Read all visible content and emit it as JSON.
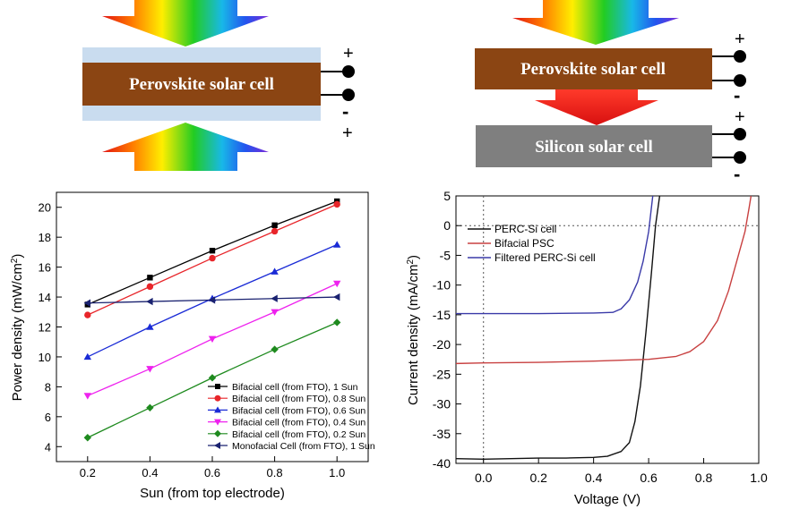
{
  "diagrams": {
    "bifacial": {
      "cell_label": "Perovskite solar cell",
      "plus": "+",
      "minus": "-",
      "plus_bottom": "+"
    },
    "tandem": {
      "top_label": "Perovskite solar cell",
      "bottom_label": "Silicon solar cell",
      "plus1": "+",
      "minus1": "-",
      "plus2": "+",
      "minus2": "-"
    }
  },
  "chart_data": [
    {
      "type": "line",
      "xlabel": "Sun (from top electrode)",
      "ylabel": "Power density (mW/cm²)",
      "xlim": [
        0.1,
        1.1
      ],
      "ylim": [
        3,
        21
      ],
      "xticks": [
        "0.2",
        "0.4",
        "0.6",
        "0.8",
        "1.0"
      ],
      "yticks": [
        "4",
        "6",
        "8",
        "10",
        "12",
        "14",
        "16",
        "18",
        "20"
      ],
      "x": [
        0.2,
        0.4,
        0.6,
        0.8,
        1.0
      ],
      "legend_position": "bottom-right",
      "series": [
        {
          "name": "Bifacial cell (from FTO), 1 Sun",
          "color": "#000000",
          "marker": "square",
          "values": [
            13.5,
            15.3,
            17.1,
            18.8,
            20.4
          ]
        },
        {
          "name": "Bifacial cell (from FTO), 0.8 Sun",
          "color": "#e8252a",
          "marker": "circle",
          "values": [
            12.8,
            14.7,
            16.6,
            18.4,
            20.2
          ]
        },
        {
          "name": "Bifacial cell (from FTO), 0.6 Sun",
          "color": "#1a2bd6",
          "marker": "triangle-up",
          "values": [
            10.0,
            12.0,
            13.9,
            15.7,
            17.5
          ]
        },
        {
          "name": "Bifacial cell (from FTO), 0.4 Sun",
          "color": "#ee22ee",
          "marker": "triangle-down",
          "values": [
            7.4,
            9.2,
            11.2,
            13.0,
            14.9
          ]
        },
        {
          "name": "Bifacial cell (from FTO), 0.2 Sun",
          "color": "#1e8a1e",
          "marker": "diamond",
          "values": [
            4.6,
            6.6,
            8.6,
            10.5,
            12.3
          ]
        },
        {
          "name": "Monofacial Cell (from FTO), 1 Sun",
          "color": "#1a2270",
          "marker": "triangle-left",
          "values": [
            13.6,
            13.7,
            13.8,
            13.9,
            14.0
          ]
        }
      ]
    },
    {
      "type": "line",
      "xlabel": "Voltage (V)",
      "ylabel": "Current density (mA/cm²)",
      "xlim": [
        -0.1,
        1.0
      ],
      "ylim": [
        -40,
        5
      ],
      "xticks": [
        "0.0",
        "0.2",
        "0.4",
        "0.6",
        "0.8",
        "1.0"
      ],
      "yticks": [
        "5",
        "0",
        "-5",
        "-10",
        "-15",
        "-20",
        "-25",
        "-30",
        "-35",
        "-40"
      ],
      "legend_position": "top-left",
      "series": [
        {
          "name": "PERC-Si cell",
          "color": "#111111",
          "points": [
            [
              -0.1,
              -39.2
            ],
            [
              0.0,
              -39.3
            ],
            [
              0.1,
              -39.2
            ],
            [
              0.2,
              -39.1
            ],
            [
              0.3,
              -39.1
            ],
            [
              0.4,
              -39.0
            ],
            [
              0.45,
              -38.8
            ],
            [
              0.5,
              -38.0
            ],
            [
              0.53,
              -36.5
            ],
            [
              0.55,
              -33.0
            ],
            [
              0.57,
              -27.0
            ],
            [
              0.59,
              -18.0
            ],
            [
              0.61,
              -8.0
            ],
            [
              0.625,
              0.0
            ],
            [
              0.64,
              5.0
            ]
          ]
        },
        {
          "name": "Bifacial PSC",
          "color": "#c84040",
          "points": [
            [
              -0.1,
              -23.2
            ],
            [
              0.0,
              -23.1
            ],
            [
              0.2,
              -23.0
            ],
            [
              0.4,
              -22.8
            ],
            [
              0.6,
              -22.5
            ],
            [
              0.7,
              -22.0
            ],
            [
              0.75,
              -21.2
            ],
            [
              0.8,
              -19.5
            ],
            [
              0.85,
              -16.0
            ],
            [
              0.89,
              -11.0
            ],
            [
              0.92,
              -6.0
            ],
            [
              0.95,
              -1.0
            ],
            [
              0.965,
              3.0
            ],
            [
              0.972,
              5.0
            ]
          ]
        },
        {
          "name": "Filtered PERC-Si cell",
          "color": "#3a3aa8",
          "points": [
            [
              -0.1,
              -14.8
            ],
            [
              0.0,
              -14.8
            ],
            [
              0.2,
              -14.8
            ],
            [
              0.4,
              -14.7
            ],
            [
              0.47,
              -14.6
            ],
            [
              0.5,
              -14.0
            ],
            [
              0.53,
              -12.5
            ],
            [
              0.56,
              -9.5
            ],
            [
              0.58,
              -6.0
            ],
            [
              0.6,
              -1.0
            ],
            [
              0.615,
              5.0
            ]
          ]
        }
      ]
    }
  ]
}
